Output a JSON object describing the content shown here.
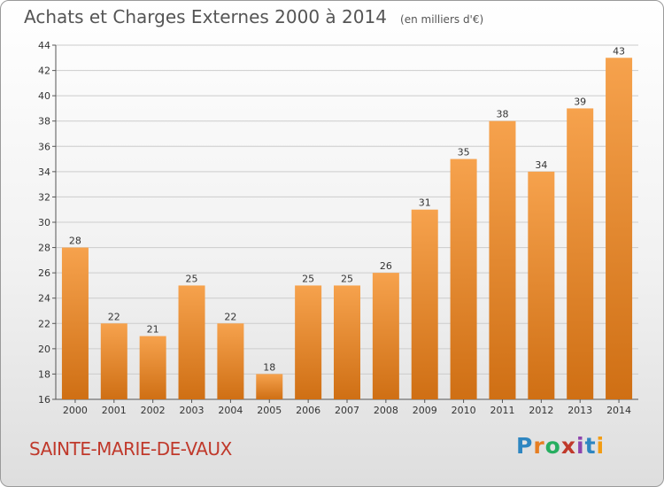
{
  "title": "Achats et Charges Externes 2000 à 2014",
  "unit": "(en milliers d'€)",
  "commune": "SAINTE-MARIE-DE-VAUX",
  "logo": {
    "letters": [
      {
        "ch": "P",
        "color": "#2e86c1"
      },
      {
        "ch": "r",
        "color": "#e67e22"
      },
      {
        "ch": "o",
        "color": "#27ae60"
      },
      {
        "ch": "x",
        "color": "#c0392b"
      },
      {
        "ch": "i",
        "color": "#8e44ad"
      },
      {
        "ch": "t",
        "color": "#2e86c1"
      },
      {
        "ch": "i",
        "color": "#f39c12"
      }
    ]
  },
  "colors": {
    "bar_top": "#f6a24d",
    "bar_bottom": "#cf6f14",
    "grid": "#cccccc"
  },
  "chart_data": {
    "type": "bar",
    "categories": [
      "2000",
      "2001",
      "2002",
      "2003",
      "2004",
      "2005",
      "2006",
      "2007",
      "2008",
      "2009",
      "2010",
      "2011",
      "2012",
      "2013",
      "2014"
    ],
    "values": [
      28,
      22,
      21,
      25,
      22,
      18,
      25,
      25,
      26,
      31,
      35,
      38,
      34,
      39,
      43
    ],
    "title": "Achats et Charges Externes 2000 à 2014",
    "ylim": [
      16,
      44
    ],
    "yticks": [
      16,
      18,
      20,
      22,
      24,
      26,
      28,
      30,
      32,
      34,
      36,
      38,
      40,
      42,
      44
    ],
    "grid": true,
    "data_labels": true
  }
}
